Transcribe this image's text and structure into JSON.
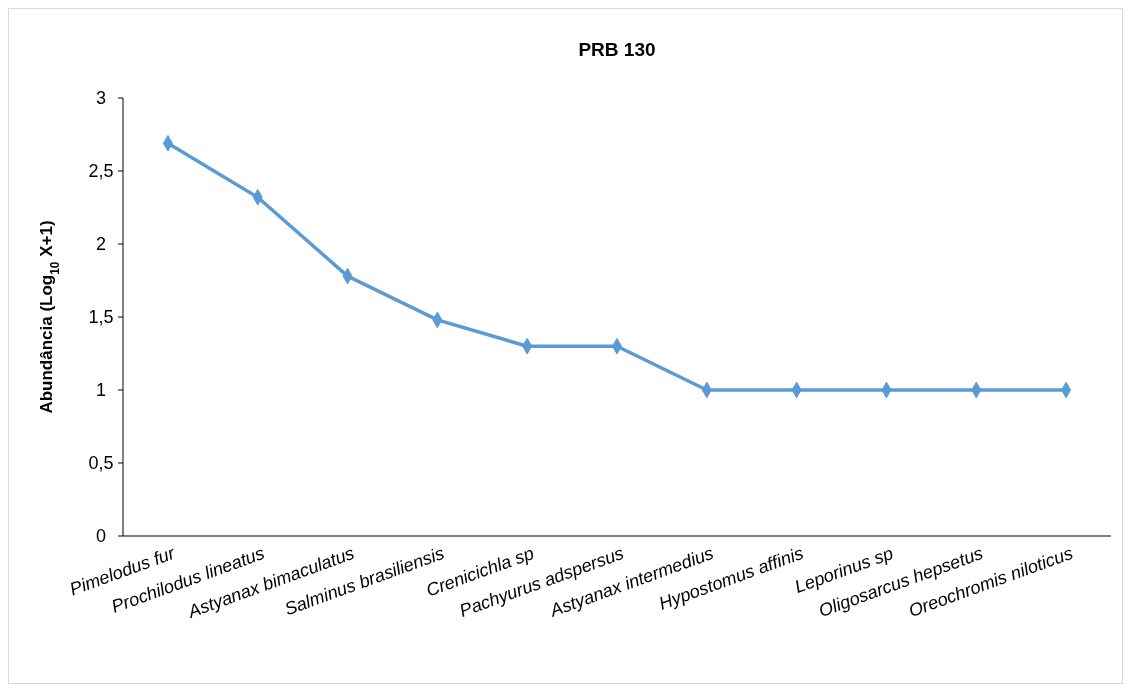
{
  "chart_data": {
    "type": "line",
    "title": "PRB 130",
    "ylabel": "Abundância (Log$_{10}$ X+1)",
    "categories": [
      "Pimelodus fur",
      "Prochilodus lineatus",
      "Astyanax bimaculatus",
      "Salminus brasiliensis",
      "Crenicichla sp",
      "Pachyurus adspersus",
      "Astyanax intermedius",
      "Hypostomus affinis",
      "Leporinus sp",
      "Oligosarcus hepsetus",
      "Oreochromis niloticus"
    ],
    "series": [
      {
        "color": "#5b9bd5",
        "values": [
          2.69,
          2.32,
          1.78,
          1.48,
          1.3,
          1.3,
          1,
          1,
          1,
          1,
          1
        ]
      }
    ],
    "ylim": [
      0,
      3
    ],
    "yticks": [
      0,
      {
        "value": 0.5,
        "label": "0,5"
      },
      1,
      {
        "value": 1.5,
        "label": "1,5"
      },
      2,
      {
        "value": 2.5,
        "label": "2,5"
      },
      3
    ],
    "marker": "diamond",
    "line_style": "solid"
  }
}
